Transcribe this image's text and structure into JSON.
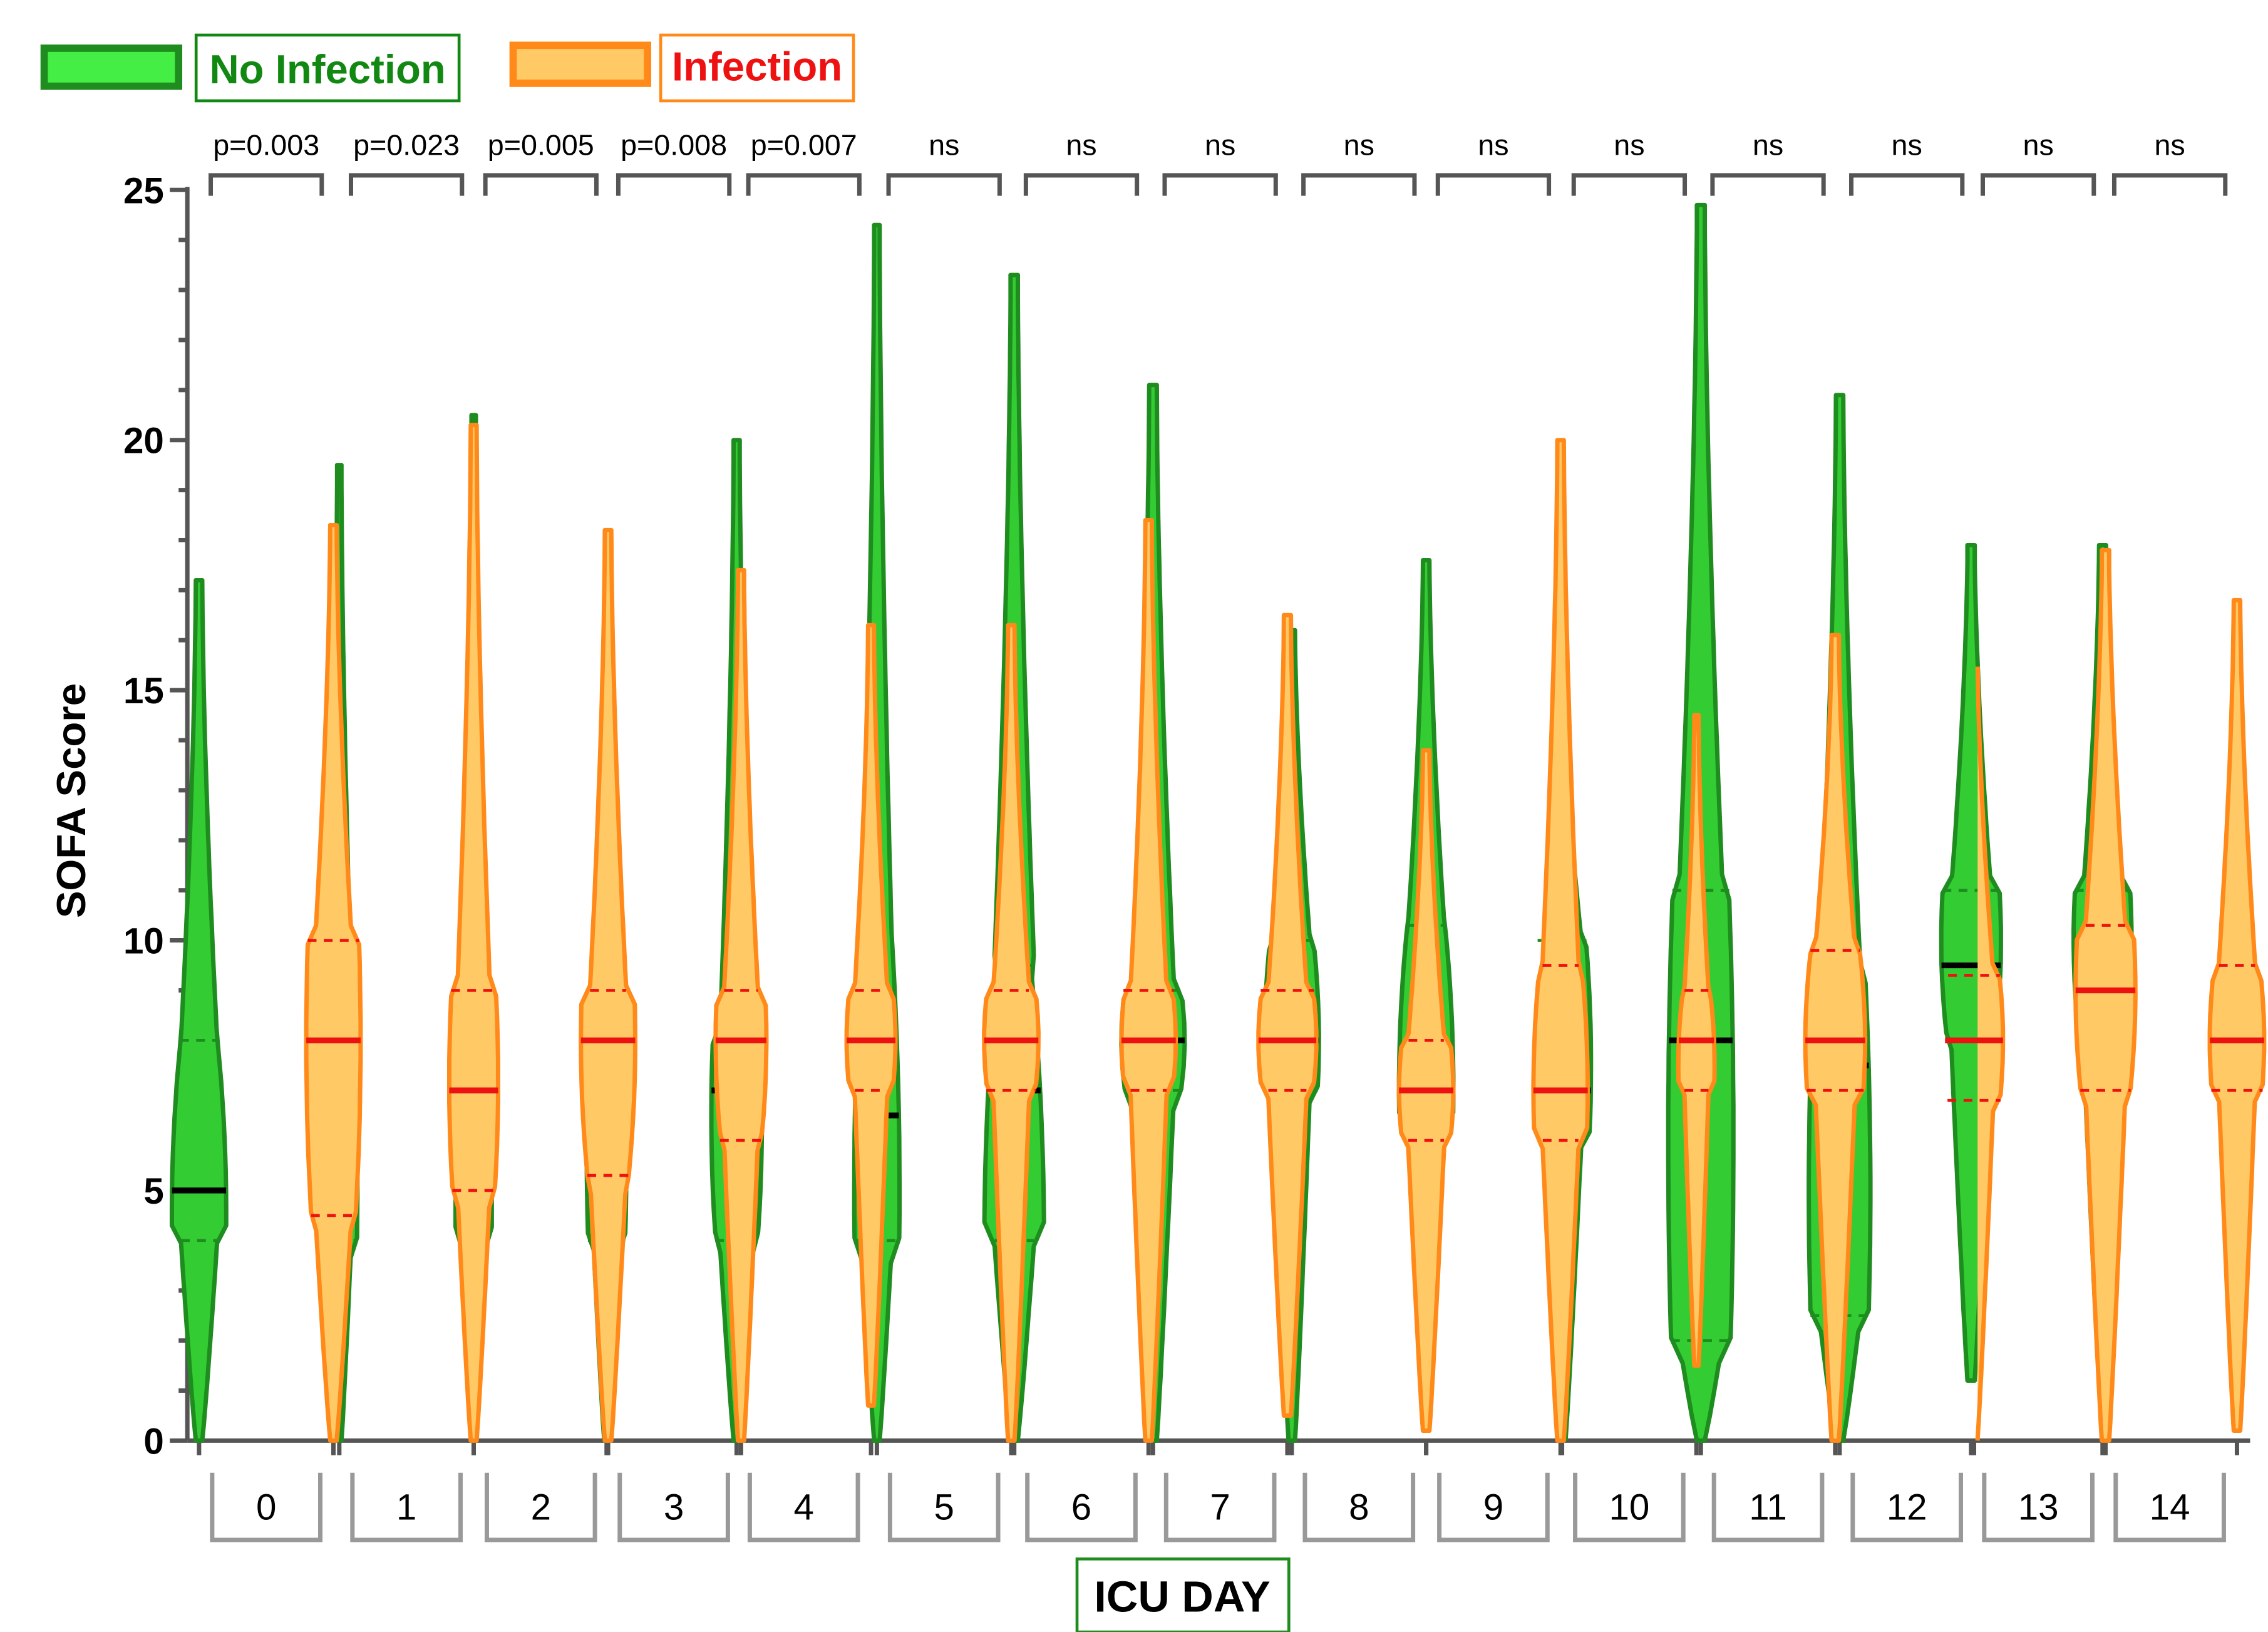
{
  "legend": {
    "no_infection_label": "No Infection",
    "infection_label": "Infection"
  },
  "colors": {
    "no_infection_fill": "#33cc33",
    "no_infection_stroke": "#1e8c1e",
    "no_infection_label": "#118811",
    "legend_green_fill": "#44ee44",
    "infection_fill": "#ffc966",
    "infection_stroke": "#ff8a1a",
    "infection_label": "#ee1111",
    "median_no_infection": "#000000",
    "median_infection": "#ee1111",
    "axis": "#555555",
    "day_box": "#999999"
  },
  "chart_data": {
    "type": "violin",
    "title": "",
    "xlabel": "ICU DAY",
    "ylabel": "SOFA Score",
    "ylim": [
      0,
      25
    ],
    "y_ticks": [
      0,
      5,
      10,
      15,
      20,
      25
    ],
    "categories": [
      "0",
      "1",
      "2",
      "3",
      "4",
      "5",
      "6",
      "7",
      "8",
      "9",
      "10",
      "11",
      "12",
      "13",
      "14"
    ],
    "p_values": [
      "p=0.003",
      "p=0.023",
      "p=0.005",
      "p=0.008",
      "p=0.007",
      "ns",
      "ns",
      "ns",
      "ns",
      "ns",
      "ns",
      "ns",
      "ns",
      "ns",
      "ns"
    ],
    "series": [
      {
        "name": "No Infection",
        "min": [
          0,
          0,
          0,
          0,
          0,
          0,
          0,
          0,
          0,
          0.5,
          0,
          0,
          0,
          1.2,
          1.2
        ],
        "max": [
          17.2,
          19.5,
          20.5,
          16.6,
          20,
          24.3,
          23.3,
          21.1,
          16.2,
          17.6,
          14.8,
          24.7,
          20.9,
          17.9,
          17.9
        ],
        "q1": [
          4,
          4,
          4,
          4,
          4,
          4,
          4,
          7,
          7,
          6.3,
          6,
          2,
          2.5,
          8,
          8
        ],
        "median": [
          5,
          5,
          5,
          6,
          7,
          6.5,
          7,
          8,
          8,
          7,
          7,
          8,
          7.5,
          9.5,
          9.5
        ],
        "q3": [
          8,
          9,
          8,
          9,
          8,
          9.8,
          9.5,
          9,
          10,
          10.3,
          10,
          11,
          9.5,
          11,
          11
        ],
        "mode": [
          4.6,
          5,
          4.5,
          6,
          6.5,
          5,
          4,
          8,
          8,
          7,
          7.5,
          6,
          5,
          10,
          10
        ],
        "peak_halfwidth": [
          0.3,
          0.2,
          0.2,
          0.22,
          0.28,
          0.25,
          0.33,
          0.35,
          0.3,
          0.3,
          0.32,
          0.36,
          0.34,
          0.33,
          0.32
        ]
      },
      {
        "name": "Infection",
        "min": [
          0,
          0,
          0,
          0,
          0.7,
          0,
          0,
          0.5,
          0.2,
          0,
          1.5,
          0,
          0,
          0,
          0.2
        ],
        "max": [
          18.3,
          20.3,
          18.2,
          17.4,
          16.3,
          16.3,
          18.4,
          16.5,
          13.8,
          20,
          14.5,
          16.1,
          15.8,
          17.8,
          16.8
        ],
        "q1": [
          4.5,
          5,
          5.3,
          6,
          7,
          7,
          7,
          7,
          6,
          6,
          7,
          7,
          6.8,
          7,
          7
        ],
        "median": [
          8,
          7,
          8,
          8,
          8,
          8,
          8,
          8,
          7,
          7,
          8,
          8,
          8,
          9,
          8
        ],
        "q3": [
          10,
          9,
          9,
          9,
          9,
          9,
          9,
          9,
          8,
          9.5,
          9,
          9.8,
          9.3,
          10.3,
          9.5
        ],
        "mode": [
          8,
          7.2,
          8,
          8,
          8,
          8,
          8,
          8,
          7,
          7,
          7.5,
          8,
          8,
          9,
          8
        ],
        "peak_halfwidth": [
          0.3,
          0.27,
          0.3,
          0.28,
          0.27,
          0.3,
          0.3,
          0.32,
          0.3,
          0.3,
          0.2,
          0.33,
          0.32,
          0.33,
          0.3
        ]
      }
    ]
  }
}
